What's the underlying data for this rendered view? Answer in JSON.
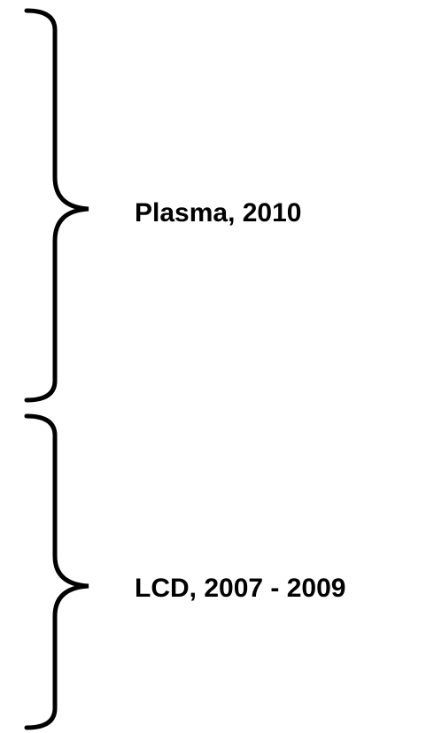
{
  "labels": [
    {
      "text": "Plasma, 2010"
    },
    {
      "text": "LCD, 2007 - 2009"
    }
  ]
}
